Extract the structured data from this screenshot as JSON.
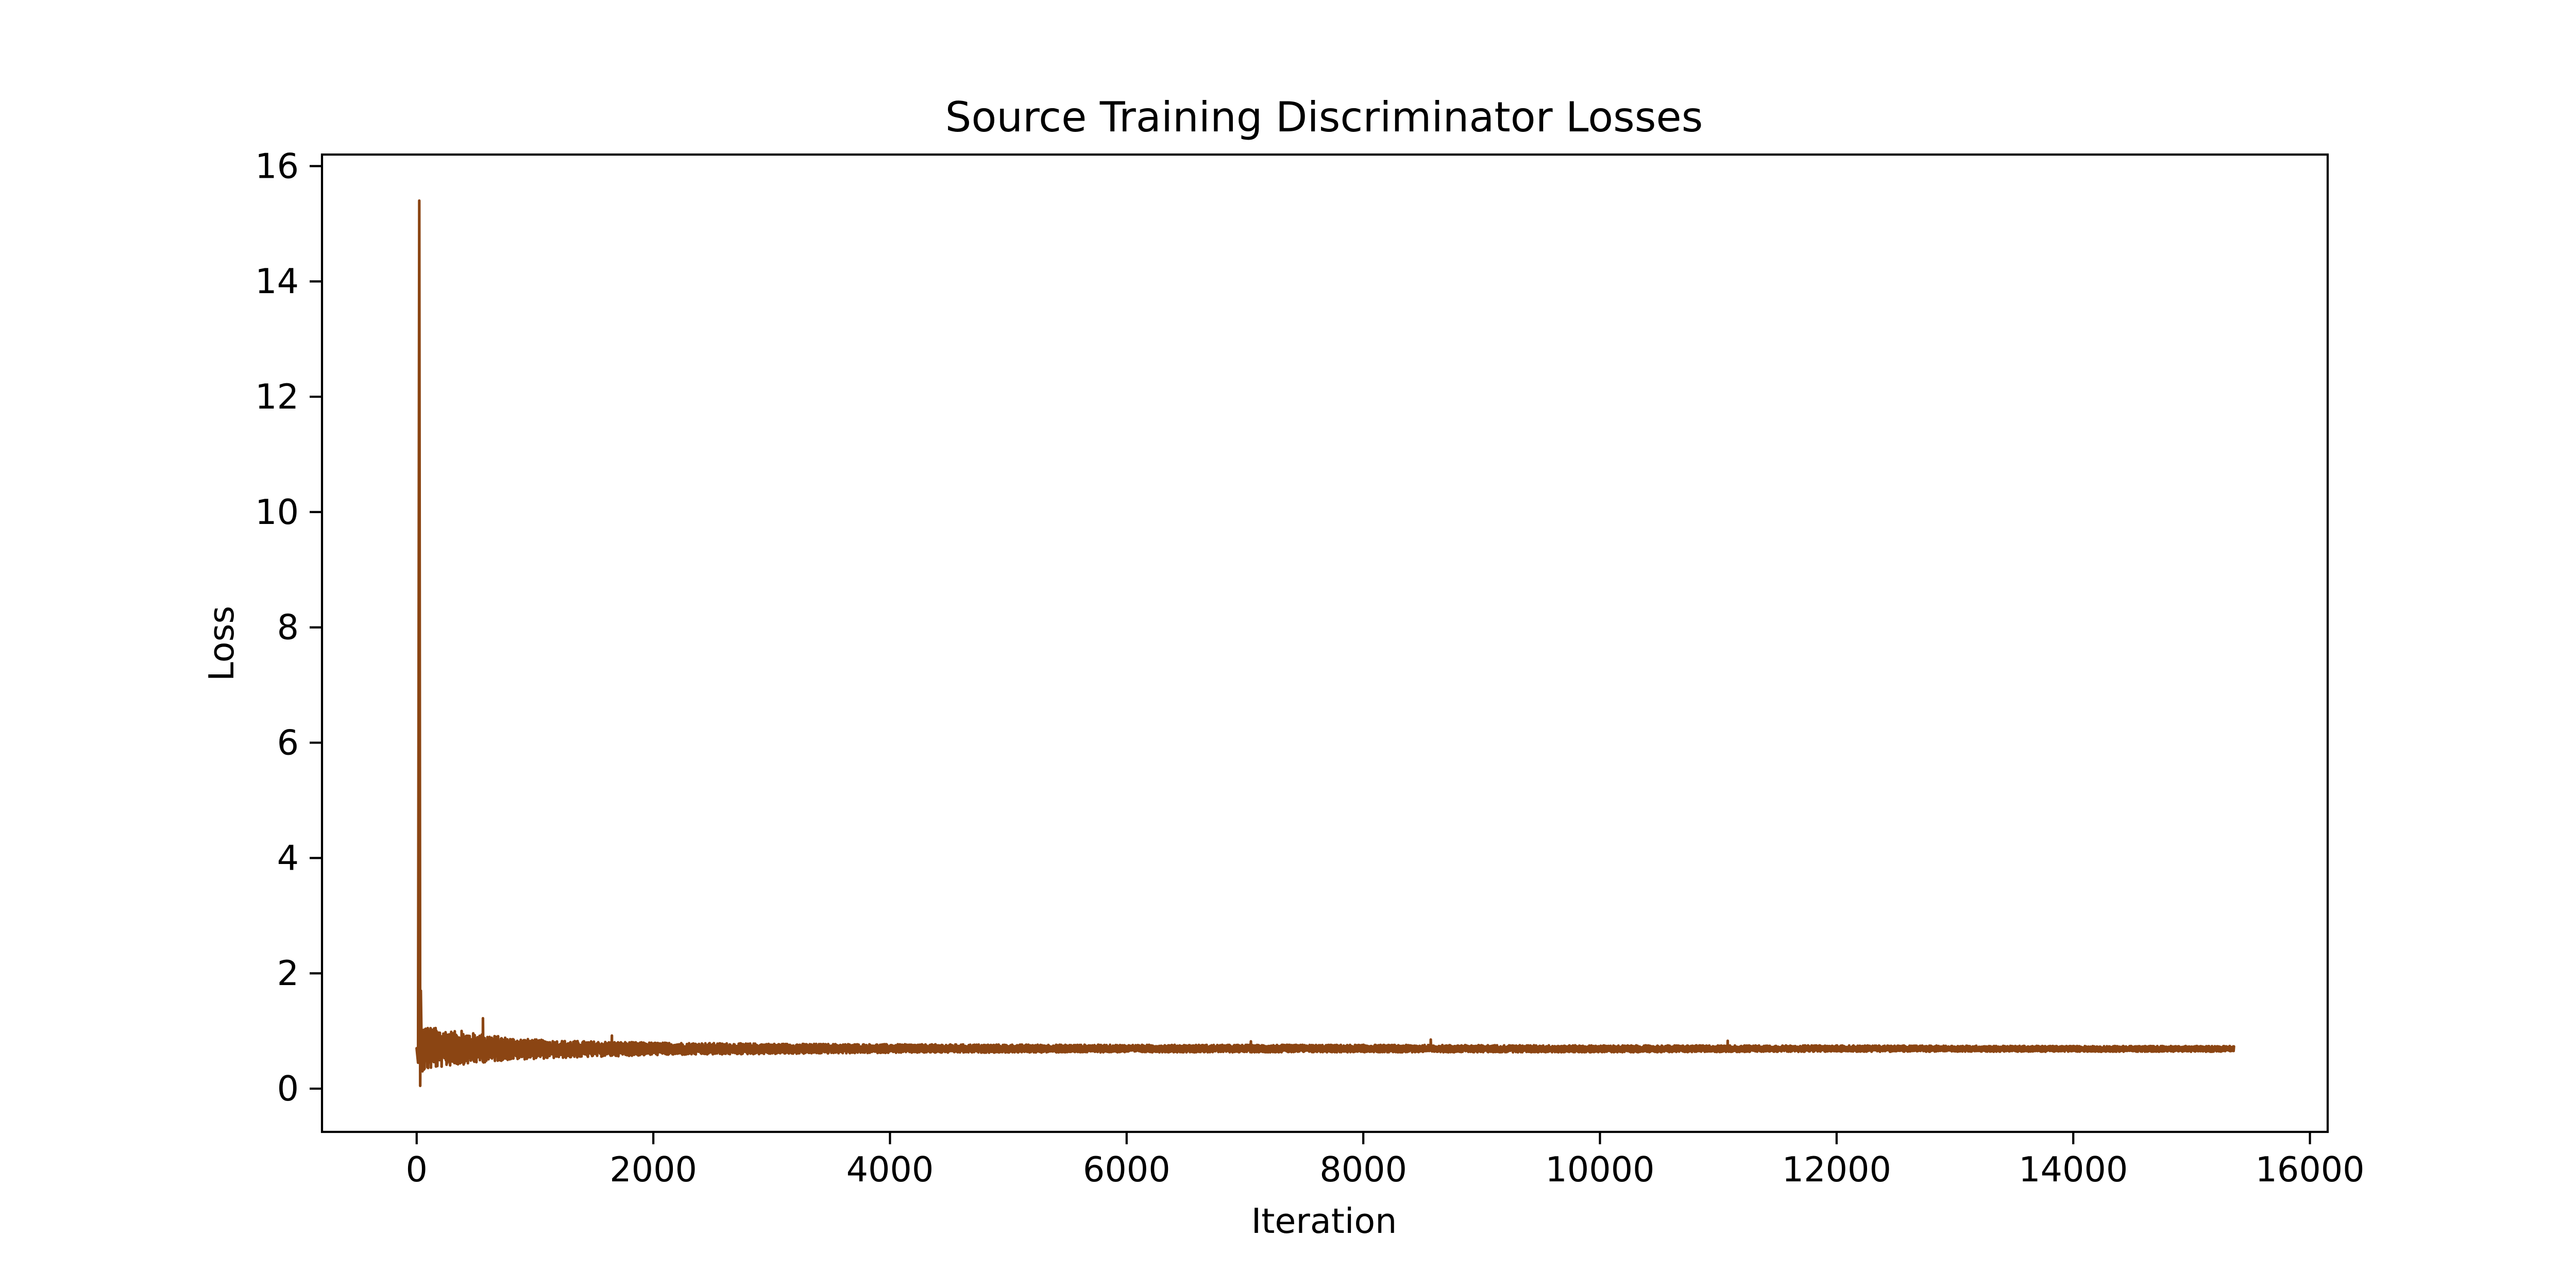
{
  "chart_data": {
    "type": "line",
    "title": "Source Training Discriminator Losses",
    "xlabel": "Iteration",
    "ylabel": "Loss",
    "xlim": [
      -800,
      16150
    ],
    "ylim": [
      -0.75,
      16.2
    ],
    "x_ticks": [
      0,
      2000,
      4000,
      6000,
      8000,
      10000,
      12000,
      14000,
      16000
    ],
    "y_ticks": [
      0,
      2,
      4,
      6,
      8,
      10,
      12,
      14,
      16
    ],
    "x_tick_labels": [
      "0",
      "2000",
      "4000",
      "6000",
      "8000",
      "10000",
      "12000",
      "14000",
      "16000"
    ],
    "y_tick_labels": [
      "0",
      "2",
      "4",
      "6",
      "8",
      "10",
      "12",
      "14",
      "16"
    ],
    "grid": false,
    "series": [
      {
        "color": "#8b4513",
        "x_start": 0,
        "x_end": 15360,
        "summary": {
          "initial": 0.7,
          "spike_peak": {
            "x": 22,
            "y": 15.4
          },
          "min": {
            "x": 30,
            "y": 0.05
          },
          "steady_state_mean": 0.7
        },
        "envelope": {
          "x": [
            60,
            150,
            300,
            550,
            800,
            1100,
            1500,
            2000,
            3000,
            4000,
            6000,
            8000,
            10000,
            12000,
            14000,
            15360
          ],
          "lower": [
            0.3,
            0.35,
            0.4,
            0.45,
            0.5,
            0.52,
            0.55,
            0.58,
            0.6,
            0.62,
            0.63,
            0.63,
            0.63,
            0.64,
            0.64,
            0.64
          ],
          "upper": [
            1.1,
            1.05,
            1.0,
            0.95,
            0.88,
            0.84,
            0.82,
            0.8,
            0.78,
            0.77,
            0.76,
            0.76,
            0.75,
            0.75,
            0.74,
            0.74
          ]
        },
        "outliers": [
          {
            "x": 35,
            "y": 1.7
          },
          {
            "x": 160,
            "y": 1.05
          },
          {
            "x": 380,
            "y": 1.0
          },
          {
            "x": 560,
            "y": 1.22
          },
          {
            "x": 1650,
            "y": 0.92
          },
          {
            "x": 7050,
            "y": 0.82
          },
          {
            "x": 8570,
            "y": 0.85
          },
          {
            "x": 11080,
            "y": 0.83
          }
        ]
      }
    ]
  }
}
